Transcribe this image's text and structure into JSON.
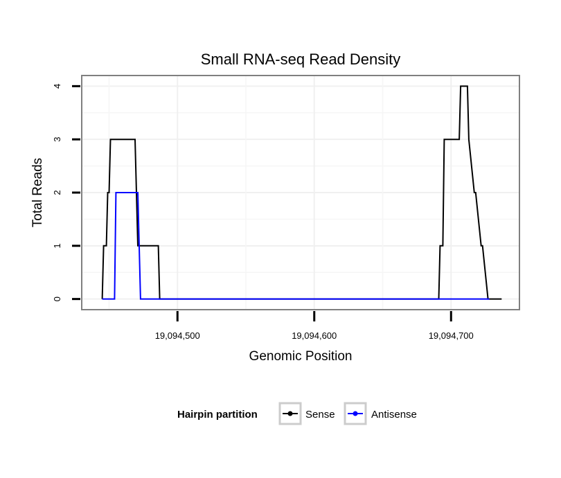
{
  "chart_data": {
    "type": "line",
    "title": "Small RNA-seq Read Density",
    "xlabel": "Genomic Position",
    "ylabel": "Total Reads",
    "xlim": [
      19094430,
      19094750
    ],
    "ylim": [
      -0.2,
      4.2
    ],
    "x_ticks": [
      19094500,
      19094600,
      19094700
    ],
    "x_tick_labels": [
      "19,094,500",
      "19,094,600",
      "19,094,700"
    ],
    "y_ticks": [
      0,
      1,
      2,
      3,
      4
    ],
    "y_tick_labels": [
      "0",
      "1",
      "2",
      "3",
      "4"
    ],
    "grid": true,
    "legend": {
      "title": "Hairpin partition",
      "position": "bottom"
    },
    "series": [
      {
        "name": "Sense",
        "color": "#000000",
        "x": [
          19094445,
          19094446,
          19094448,
          19094449,
          19094450,
          19094451,
          19094452,
          19094453,
          19094469,
          19094471,
          19094486,
          19094487,
          19094691,
          19094692,
          19094694,
          19094695,
          19094706,
          19094707,
          19094712,
          19094713,
          19094717,
          19094718,
          19094722,
          19094723,
          19094727,
          19094728,
          19094737
        ],
        "values": [
          0,
          1,
          1,
          2,
          2,
          3,
          3,
          3,
          3,
          1,
          1,
          0,
          0,
          1,
          1,
          3,
          3,
          4,
          4,
          3,
          2,
          2,
          1,
          1,
          0,
          0,
          0
        ]
      },
      {
        "name": "Antisense",
        "color": "#0000ff",
        "x": [
          19094445,
          19094454,
          19094455,
          19094471,
          19094473,
          19094691,
          19094728
        ],
        "values": [
          0,
          0,
          2,
          2,
          0,
          0,
          0
        ]
      }
    ]
  }
}
